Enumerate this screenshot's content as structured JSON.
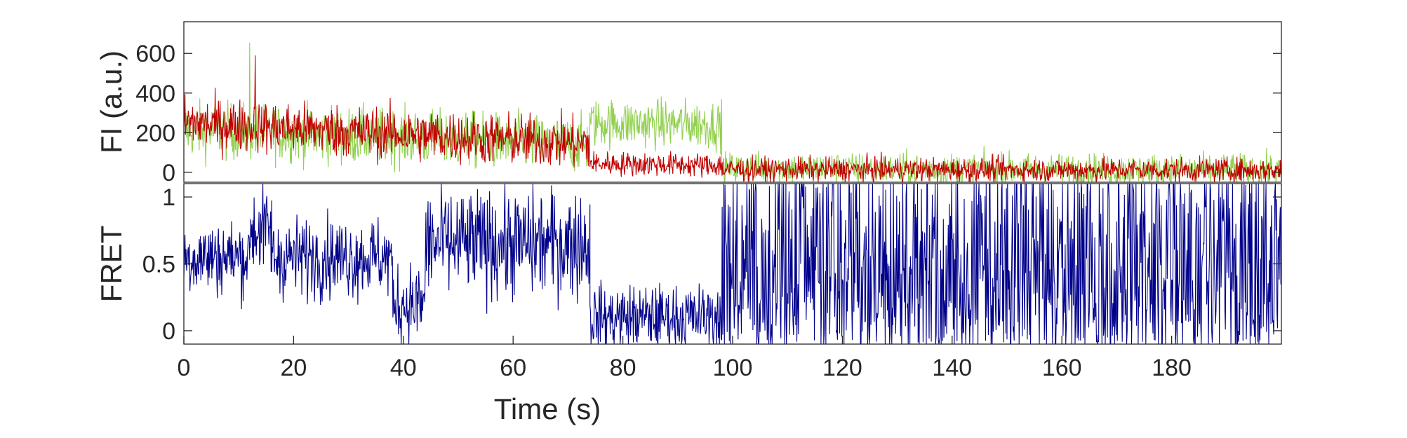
{
  "chart_data": [
    {
      "type": "line",
      "panel": "top",
      "ylabel": "FI (a.u.)",
      "xlim": [
        0,
        200
      ],
      "ylim": [
        -50,
        760
      ],
      "yticks": [
        0,
        200,
        400,
        600
      ],
      "ytick_labels": [
        "0",
        "200",
        "400",
        "600"
      ],
      "series": [
        {
          "color": "#92d050",
          "segments": [
            {
              "x0": 0,
              "x1": 74,
              "mean": 215,
              "noise": 70,
              "trend_end": 140
            },
            {
              "x0": 74,
              "x1": 98,
              "mean": 250,
              "noise": 60,
              "trend_end": 240
            },
            {
              "x0": 98,
              "x1": 200,
              "mean": 20,
              "noise": 40,
              "trend_end": 10
            }
          ],
          "spikes": [
            [
              12,
              655
            ]
          ]
        },
        {
          "color": "#c00000",
          "segments": [
            {
              "x0": 0,
              "x1": 74,
              "mean": 250,
              "noise": 65,
              "trend_end": 145
            },
            {
              "x0": 74,
              "x1": 98,
              "mean": 45,
              "noise": 30,
              "trend_end": 35
            },
            {
              "x0": 98,
              "x1": 200,
              "mean": 15,
              "noise": 30,
              "trend_end": 10
            }
          ],
          "spikes": [
            [
              13,
              590
            ]
          ]
        }
      ]
    },
    {
      "type": "line",
      "panel": "bottom",
      "ylabel": "FRET",
      "xlabel": "Time (s)",
      "xlim": [
        0,
        200
      ],
      "ylim": [
        -0.1,
        1.1
      ],
      "yticks": [
        0,
        0.5,
        1
      ],
      "ytick_labels": [
        "0",
        "0.5",
        "1"
      ],
      "xticks": [
        0,
        20,
        40,
        60,
        80,
        100,
        120,
        140,
        160,
        180
      ],
      "xtick_labels": [
        "0",
        "20",
        "40",
        "60",
        "80",
        "100",
        "120",
        "140",
        "160",
        "180"
      ],
      "series": [
        {
          "color": "#00008b",
          "segments": [
            {
              "x0": 0,
              "x1": 12,
              "mean": 0.55,
              "noise": 0.14
            },
            {
              "x0": 12,
              "x1": 16,
              "mean": 0.75,
              "noise": 0.16
            },
            {
              "x0": 16,
              "x1": 38,
              "mean": 0.55,
              "noise": 0.15
            },
            {
              "x0": 38,
              "x1": 44,
              "mean": 0.2,
              "noise": 0.15
            },
            {
              "x0": 44,
              "x1": 74,
              "mean": 0.65,
              "noise": 0.2
            },
            {
              "x0": 74,
              "x1": 98,
              "mean": 0.1,
              "noise": 0.12
            },
            {
              "x0": 98,
              "x1": 200,
              "mean": 0.5,
              "noise": 0.5
            }
          ]
        }
      ]
    }
  ]
}
